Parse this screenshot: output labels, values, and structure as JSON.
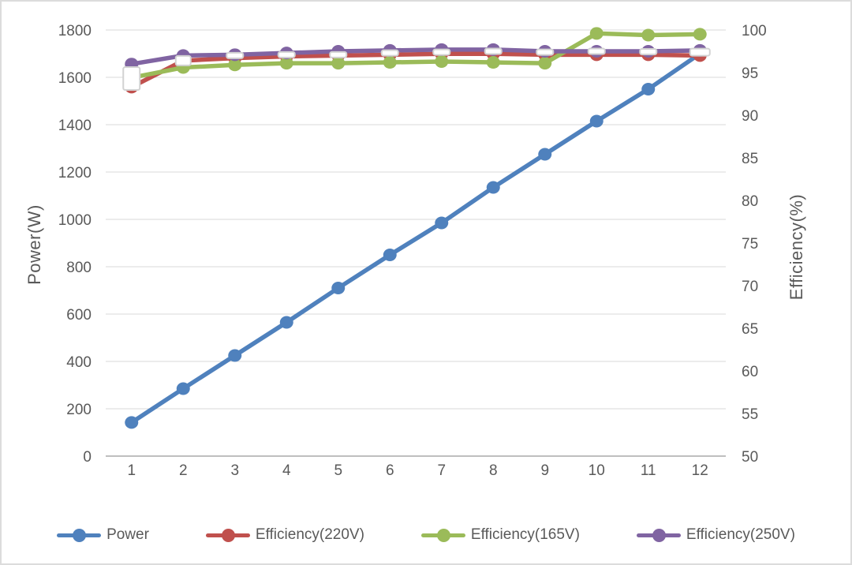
{
  "figure": {
    "background": "#ffffff",
    "border_color": "#dcdcdc"
  },
  "colors": {
    "text": "#595959",
    "gridline": "#d9d9d9",
    "axis_line": "#bfbfbf"
  },
  "chart_data": {
    "type": "line",
    "title": "",
    "xlabel": "",
    "ylabel_left": "Power(W)",
    "ylabel_right": "Efficiency(%)",
    "ylim_left": [
      0,
      1800
    ],
    "ylim_right": [
      50,
      100
    ],
    "left_ticks": [
      0,
      200,
      400,
      600,
      800,
      1000,
      1200,
      1400,
      1600,
      1800
    ],
    "right_ticks": [
      50,
      55,
      60,
      65,
      70,
      75,
      80,
      85,
      90,
      95,
      100
    ],
    "categories": [
      1,
      2,
      3,
      4,
      5,
      6,
      7,
      8,
      9,
      10,
      11,
      12
    ],
    "grid": "horizontal",
    "legend_position": "bottom",
    "series": [
      {
        "name": "Power",
        "axis": "left",
        "color": "#4f81bd",
        "marker": "circle",
        "in_legend": true,
        "values": [
          142,
          285,
          425,
          565,
          710,
          850,
          985,
          1135,
          1275,
          1415,
          1550,
          1700
        ]
      },
      {
        "name": "Efficiency(220V)",
        "axis": "right",
        "color": "#c0504d",
        "marker": "circle",
        "in_legend": true,
        "values": [
          93.3,
          96.4,
          96.7,
          96.9,
          97.0,
          97.1,
          97.2,
          97.2,
          97.1,
          97.1,
          97.1,
          97.0
        ]
      },
      {
        "name": "Efficiency(165V)",
        "axis": "right",
        "color": "#9bbb59",
        "marker": "circle",
        "in_legend": true,
        "values": [
          94.4,
          95.6,
          95.9,
          96.1,
          96.1,
          96.2,
          96.3,
          96.2,
          96.1,
          99.6,
          99.4,
          99.5
        ]
      },
      {
        "name": "Efficiency(250V)",
        "axis": "right",
        "color": "#8064a2",
        "marker": "circle",
        "in_legend": true,
        "values": [
          96.0,
          97.0,
          97.1,
          97.3,
          97.5,
          97.6,
          97.7,
          97.7,
          97.5,
          97.5,
          97.5,
          97.6
        ]
      },
      {
        "name": "unlabeled-white-square-markers",
        "axis": "right",
        "color": "#ffffff",
        "border_color": "#d2d2d2",
        "marker": "white-square",
        "line": false,
        "in_legend": false,
        "values": [
          94.3,
          96.4,
          97.0,
          97.1,
          97.1,
          97.3,
          97.4,
          97.5,
          97.4,
          97.5,
          97.45,
          97.4
        ]
      }
    ]
  }
}
